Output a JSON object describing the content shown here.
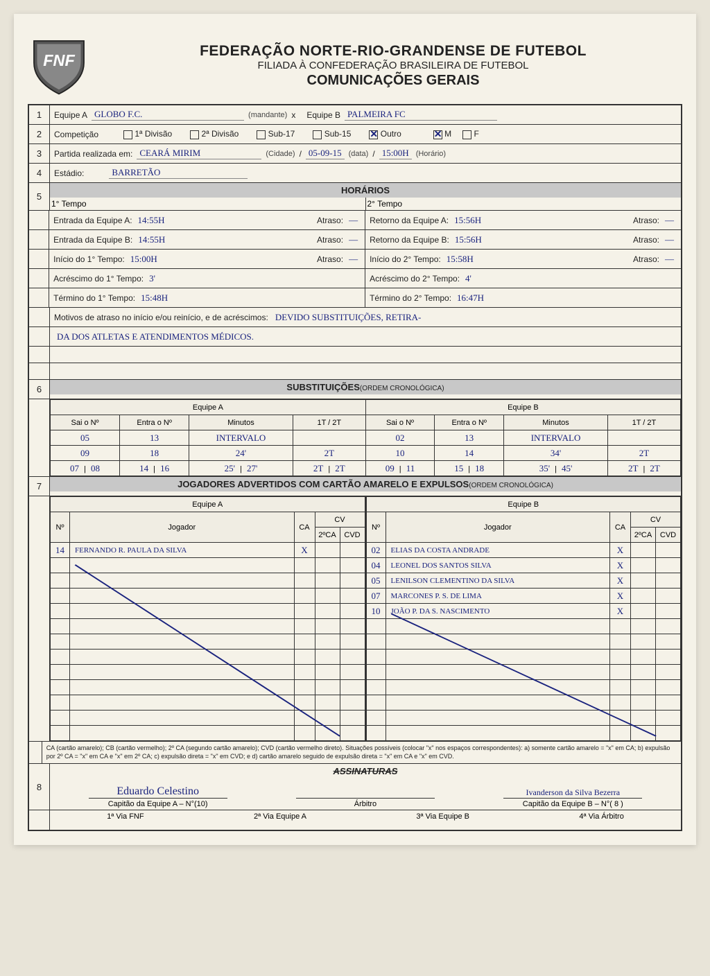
{
  "header": {
    "org": "FEDERAÇÃO NORTE-RIO-GRANDENSE DE FUTEBOL",
    "affil": "FILIADA À CONFEDERAÇÃO BRASILEIRA DE FUTEBOL",
    "doc": "COMUNICAÇÕES GERAIS",
    "logo_text": "FNF"
  },
  "row1": {
    "equipeA_label": "Equipe A",
    "equipeA_value": "GLOBO F.C.",
    "mandante": "(mandante)",
    "x": "x",
    "equipeB_label": "Equipe B",
    "equipeB_value": "PALMEIRA   FC"
  },
  "row2": {
    "comp": "Competição",
    "d1": "1ª Divisão",
    "d2": "2ª Divisão",
    "s17": "Sub-17",
    "s15": "Sub-15",
    "outro": "Outro",
    "m": "M",
    "f": "F",
    "outro_checked": true,
    "m_checked": true
  },
  "row3": {
    "label": "Partida realizada em:",
    "cidade_val": "CEARÁ MIRIM",
    "cidade_lbl": "(Cidade)",
    "data_val": "05-09-15",
    "data_lbl": "(data)",
    "hora_val": "15:00h",
    "hora_lbl": "(Horário)"
  },
  "row4": {
    "label": "Estádio:",
    "value": "BARRETÃO"
  },
  "horarios": {
    "title": "HORÁRIOS",
    "t1": "1° Tempo",
    "t2": "2° Tempo",
    "entA_l": "Entrada da Equipe A:",
    "entA_v": "14:55h",
    "atraso": "Atraso:",
    "dash": "—",
    "entB_l": "Entrada da Equipe B:",
    "entB_v": "14:55h",
    "ini1_l": "Início do 1° Tempo:",
    "ini1_v": "15:00h",
    "acr1_l": "Acréscimo do 1° Tempo:",
    "acr1_v": "3'",
    "ter1_l": "Término do 1° Tempo:",
    "ter1_v": "15:48h",
    "retA_l": "Retorno da Equipe A:",
    "retA_v": "15:56h",
    "retB_l": "Retorno da Equipe B:",
    "retB_v": "15:56h",
    "ini2_l": "Início do 2° Tempo:",
    "ini2_v": "15:58h",
    "acr2_l": "Acréscimo do 2° Tempo:",
    "acr2_v": "4'",
    "ter2_l": "Término do 2° Tempo:",
    "ter2_v": "16:47h",
    "motivos_l": "Motivos de atraso no início e/ou reinício, e de acréscimos:",
    "motivos_v1": "DEVIDO SUBSTITUIÇÕES, RETIRA-",
    "motivos_v2": "DA DOS ATLETAS E ATENDIMENTOS MÉDICOS."
  },
  "subs": {
    "title": "SUBSTITUIÇÕES",
    "sub": "(ORDEM CRONOLÓGICA)",
    "ea": "Equipe A",
    "eb": "Equipe B",
    "sai": "Sai o Nº",
    "entra": "Entra o Nº",
    "min": "Minutos",
    "tt": "1T / 2T",
    "a": [
      {
        "sai": "05",
        "entra": "13",
        "min": "INTERVALO",
        "tt": ""
      },
      {
        "sai": "09",
        "entra": "18",
        "min": "24'",
        "tt": "2T"
      },
      {
        "sai": "07",
        "sai2": "08",
        "entra": "14",
        "entra2": "16",
        "min": "25'",
        "min2": "27'",
        "tt": "2T",
        "tt2": "2T"
      }
    ],
    "b": [
      {
        "sai": "02",
        "entra": "13",
        "min": "INTERVALO",
        "tt": ""
      },
      {
        "sai": "10",
        "entra": "14",
        "min": "34'",
        "tt": "2T"
      },
      {
        "sai": "09",
        "sai2": "11",
        "entra": "15",
        "entra2": "18",
        "min": "35'",
        "min2": "45'",
        "tt": "2T",
        "tt2": "2T"
      }
    ]
  },
  "cards": {
    "title": "JOGADORES ADVERTIDOS COM CARTÃO AMARELO E EXPULSOS",
    "sub": "(ORDEM CRONOLÓGICA)",
    "ea": "Equipe A",
    "eb": "Equipe B",
    "no": "Nº",
    "jog": "Jogador",
    "ca": "CA",
    "cv": "CV",
    "ca2": "2ºCA",
    "cvd": "CVD",
    "a": [
      {
        "n": "14",
        "nome": "FERNANDO R. PAULA DA SILVA",
        "ca": "X"
      }
    ],
    "b": [
      {
        "n": "02",
        "nome": "ELIAS DA COSTA ANDRADE",
        "ca": "X"
      },
      {
        "n": "04",
        "nome": "LEONEL DOS SANTOS SILVA",
        "ca": "X"
      },
      {
        "n": "05",
        "nome": "LENILSON CLEMENTINO DA SILVA",
        "ca": "X"
      },
      {
        "n": "07",
        "nome": "MARCONES P. S. DE LIMA",
        "ca": "X"
      },
      {
        "n": "10",
        "nome": "JOÃO P. DA S. NASCIMENTO",
        "ca": "X"
      }
    ],
    "empty_rows_a": 12,
    "empty_rows_b": 8
  },
  "footnote": "CA (cartão amarelo); CB (cartão vermelho); 2º CA (segundo cartão amarelo); CVD (cartão vermelho direto). Situações possíveis (colocar \"x\" nos espaços correspondentes): a) somente cartão amarelo = \"x\" em CA; b) expulsão por 2º CA = \"x\" em CA e \"x\" em 2º CA; c) expulsão direta = \"x\" em CVD; e d) cartão amarelo seguido de expulsão direta = \"x\" em CA e \"x\" em CVD.",
  "sigs": {
    "title": "ASSINATURAS",
    "capA": "Eduardo Celestino",
    "capA_l": "Capitão da Equipe A – N°(10)",
    "arb": "",
    "arb_l": "Árbitro",
    "capB": "Ivanderson da Silva Bezerra",
    "capB_l": "Capitão da Equipe B – N°( 8 )"
  },
  "vias": {
    "v1": "1ª Via FNF",
    "v2": "2ª Via Equipe A",
    "v3": "3ª Via Equipe B",
    "v4": "4ª Via Árbitro"
  }
}
